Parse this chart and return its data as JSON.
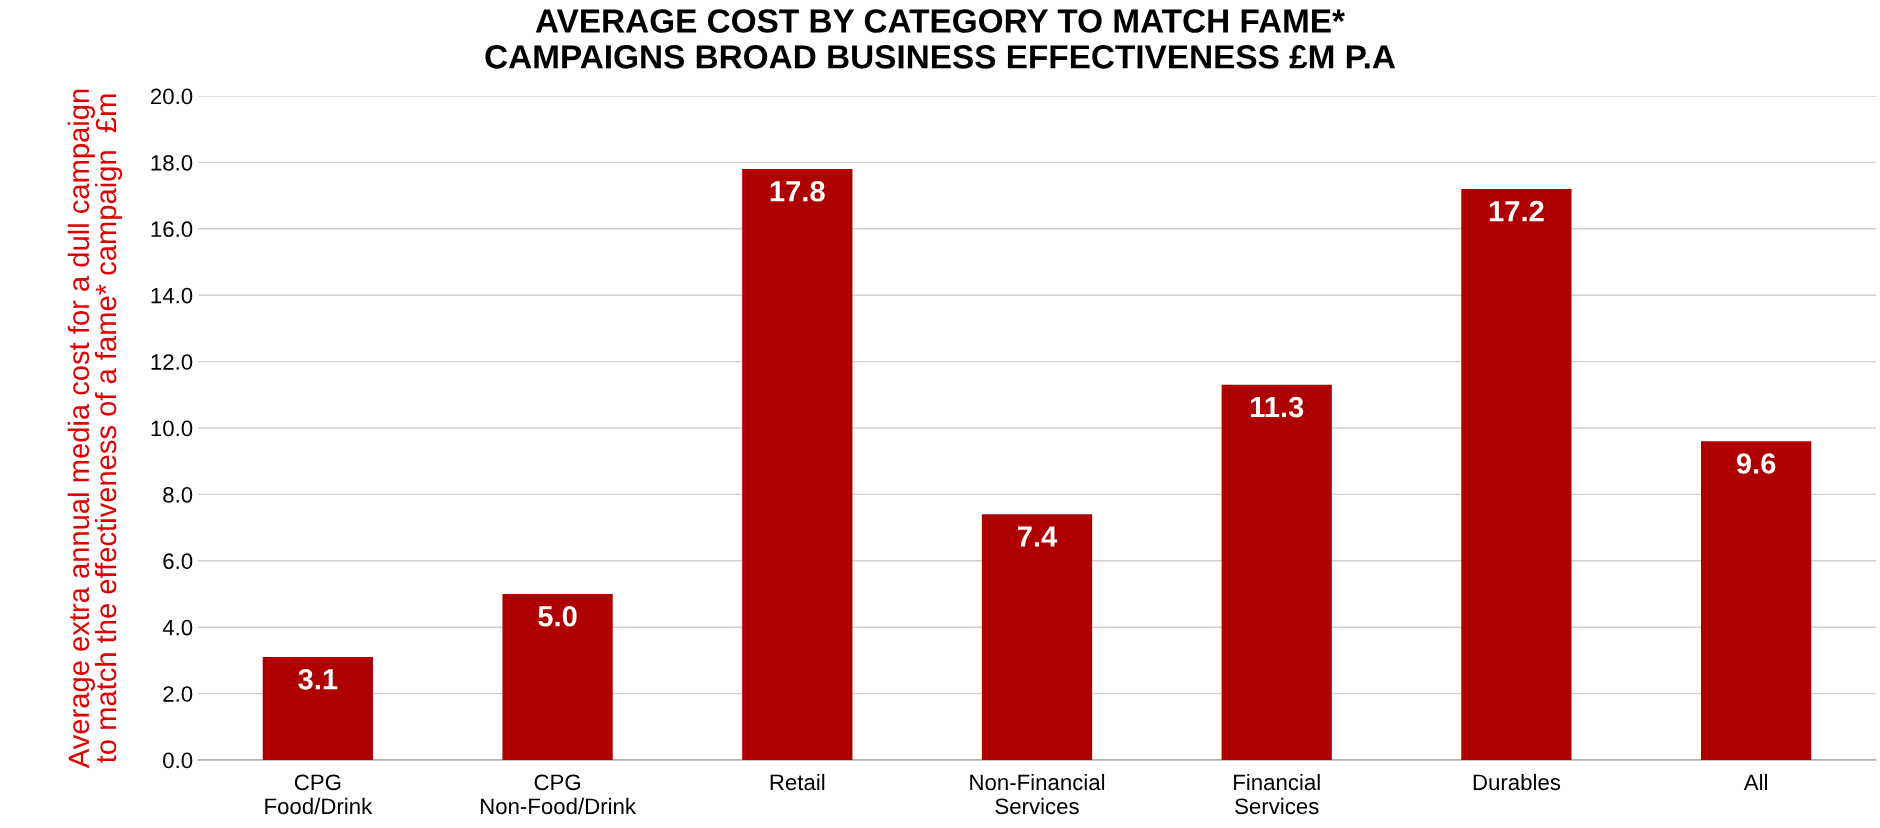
{
  "chart_data": {
    "type": "bar",
    "title": "AVERAGE COST BY CATEGORY TO MATCH FAME*\nCAMPAIGNS BROAD BUSINESS EFFECTIVENESS £M P.A",
    "ylabel": "Average extra annual media cost for a dull campaign\nto match the effectiveness of a fame* campaign  £m",
    "categories": [
      "CPG\nFood/Drink",
      "CPG\nNon-Food/Drink",
      "Retail",
      "Non-Financial\nServices",
      "Financial\nServices",
      "Durables",
      "All"
    ],
    "values": [
      3.1,
      5.0,
      17.8,
      7.4,
      11.3,
      17.2,
      9.6
    ],
    "value_labels": [
      "3.1",
      "5.0",
      "17.8",
      "7.4",
      "11.3",
      "17.2",
      "9.6"
    ],
    "color": "#ae0000",
    "ylim": [
      0,
      20
    ],
    "yticks": [
      {
        "value": 0,
        "label": "0.0"
      },
      {
        "value": 2,
        "label": "2.0"
      },
      {
        "value": 4,
        "label": "4.0"
      },
      {
        "value": 6,
        "label": "6.0"
      },
      {
        "value": 8,
        "label": "8.0"
      },
      {
        "value": 10,
        "label": "10.0"
      },
      {
        "value": 12,
        "label": "12.0"
      },
      {
        "value": 14,
        "label": "14.0"
      },
      {
        "value": 16,
        "label": "16.0"
      },
      {
        "value": 18,
        "label": "18.0"
      },
      {
        "value": 20,
        "label": "20.0"
      }
    ],
    "grid": "y"
  }
}
